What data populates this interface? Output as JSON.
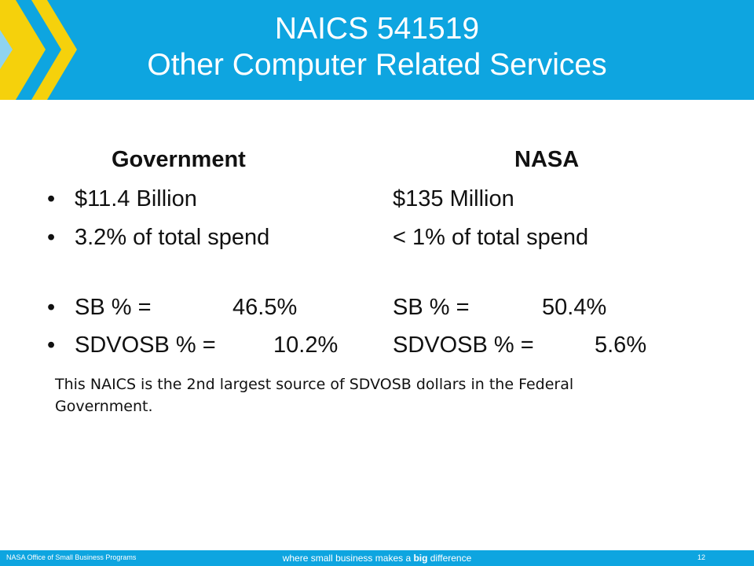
{
  "header": {
    "title_line1": "NAICS 541519",
    "title_line2": "Other Computer Related Services"
  },
  "columns": {
    "government": {
      "heading": "Government",
      "spend": "$11.4 Billion",
      "share": "3.2% of total spend",
      "sb_label": "SB % =",
      "sb_value": "46.5%",
      "sdvosb_label": "SDVOSB % =",
      "sdvosb_value": "10.2%"
    },
    "nasa": {
      "heading": "NASA",
      "spend": "$135 Million",
      "share": "< 1% of total spend",
      "sb_label": "SB % =",
      "sb_value": "50.4%",
      "sdvosb_label": "SDVOSB % =",
      "sdvosb_value": "5.6%"
    },
    "bullet_glyph": "•"
  },
  "note": "This NAICS is the 2nd largest source of SDVOSB dollars in the Federal Government.",
  "footer": {
    "left": "NASA Office of Small Business Programs",
    "tagline_before": "where small business makes a ",
    "tagline_bold": "big",
    "tagline_after": " difference",
    "page_number": "12"
  },
  "colors": {
    "header_blue": "#0ea5e0",
    "chevron_yellow": "#f5d10c",
    "chevron_light_blue": "#8fd3f0"
  }
}
